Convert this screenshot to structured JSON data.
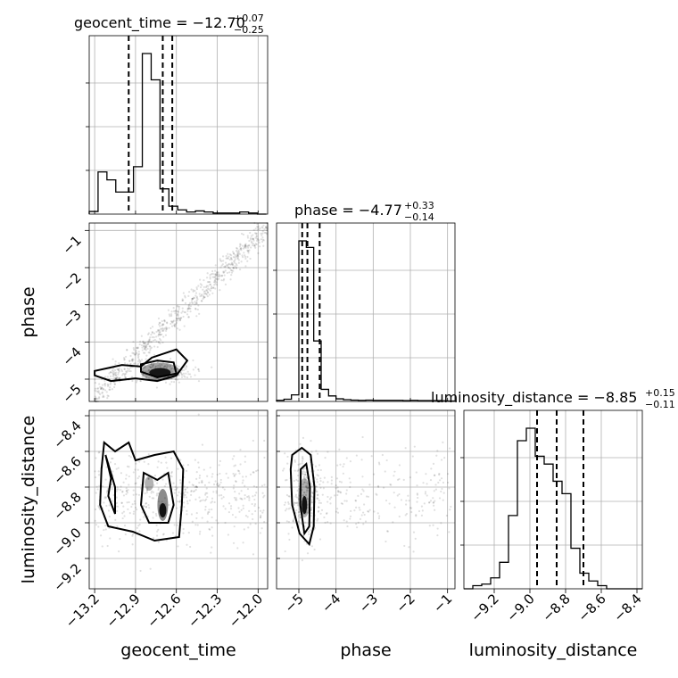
{
  "chart_data": {
    "type": "corner",
    "parameters": [
      "geocent_time",
      "phase",
      "luminosity_distance"
    ],
    "axis_labels": {
      "x": [
        "geocent_time",
        "phase",
        "luminosity_distance"
      ],
      "y": [
        "phase",
        "luminosity_distance"
      ]
    },
    "ranges": {
      "geocent_time": [
        -13.24,
        -11.93
      ],
      "phase": [
        -5.6,
        -0.8
      ],
      "luminosity_distance": [
        -9.37,
        -8.37
      ]
    },
    "ticks": {
      "geocent_time": [
        -13.2,
        -12.9,
        -12.6,
        -12.3,
        -12.0
      ],
      "phase": [
        -5,
        -4,
        -3,
        -2,
        -1
      ],
      "luminosity_distance": [
        -9.2,
        -9.0,
        -8.8,
        -8.6,
        -8.4
      ]
    },
    "tick_labels": {
      "geocent_time": [
        "−13.2",
        "−12.9",
        "−12.6",
        "−12.3",
        "−12.0"
      ],
      "phase": [
        "−5",
        "−4",
        "−3",
        "−2",
        "−1"
      ],
      "luminosity_distance": [
        "−9.2",
        "−9.0",
        "−8.8",
        "−8.6",
        "−8.4"
      ]
    },
    "titles": [
      {
        "param": "geocent_time",
        "main": "geocent_time = −12.70",
        "plus": "+0.07",
        "minus": "−0.25"
      },
      {
        "param": "phase",
        "main": "phase = −4.77",
        "plus": "+0.33",
        "minus": "−0.14"
      },
      {
        "param": "luminosity_distance",
        "main": "luminosity_distance = −8.85",
        "plus": "+0.15",
        "minus": "−0.11"
      }
    ],
    "histograms": {
      "geocent_time": {
        "edges": [
          -13.24,
          -13.175,
          -13.11,
          -13.045,
          -12.98,
          -12.915,
          -12.85,
          -12.785,
          -12.72,
          -12.655,
          -12.59,
          -12.525,
          -12.46,
          -12.395,
          -12.33,
          -12.265,
          -12.2,
          -12.135,
          -12.07,
          -12.005,
          -11.94
        ],
        "counts": [
          0.05,
          0.8,
          0.65,
          0.42,
          0.42,
          0.9,
          3.05,
          2.55,
          0.48,
          0.15,
          0.08,
          0.04,
          0.06,
          0.04,
          0.02,
          0.02,
          0.02,
          0.04,
          0.02,
          0.0
        ],
        "quantiles": [
          -12.95,
          -12.7,
          -12.63
        ]
      },
      "phase": {
        "edges": [
          -5.6,
          -5.4,
          -5.2,
          -5.0,
          -4.8,
          -4.6,
          -4.4,
          -4.2,
          -4.0,
          -3.8,
          -3.6,
          -3.4,
          -3.2,
          -3.0,
          -2.8,
          -2.6,
          -2.4,
          -2.2,
          -2.0,
          -1.8,
          -1.6,
          -1.4,
          -1.2,
          -1.0,
          -0.8
        ],
        "counts": [
          0.05,
          0.1,
          0.3,
          7.3,
          7.0,
          2.75,
          0.55,
          0.25,
          0.12,
          0.08,
          0.06,
          0.05,
          0.06,
          0.05,
          0.05,
          0.05,
          0.05,
          0.04,
          0.05,
          0.04,
          0.04,
          0.04,
          0.03,
          0.02
        ],
        "quantiles": [
          -4.91,
          -4.77,
          -4.44
        ]
      },
      "luminosity_distance": {
        "edges": [
          -9.37,
          -9.32,
          -9.27,
          -9.22,
          -9.17,
          -9.12,
          -9.07,
          -9.02,
          -8.97,
          -8.92,
          -8.87,
          -8.82,
          -8.77,
          -8.72,
          -8.67,
          -8.62,
          -8.57,
          -8.52,
          -8.47,
          -8.42,
          -8.37
        ],
        "counts": [
          0.0,
          0.02,
          0.03,
          0.07,
          0.17,
          0.47,
          0.95,
          1.03,
          0.85,
          0.8,
          0.69,
          0.61,
          0.26,
          0.1,
          0.05,
          0.02,
          0.0,
          0.0,
          0.0,
          0.0
        ],
        "quantiles": [
          -8.96,
          -8.85,
          -8.7
        ]
      }
    },
    "scatter": {
      "phase_vs_geocent_time": "cloud of posterior samples rising from lower-left (−13.2, −5.5) to upper-right (−12.0, −1.0), dense cluster near (−12.7, −4.8)",
      "luminosity_distance_vs_geocent_time": "broad cloud centred near (−12.8, −8.85)",
      "luminosity_distance_vs_phase": "broad cloud centred near (−4.8, −8.85)"
    },
    "grid": true
  }
}
